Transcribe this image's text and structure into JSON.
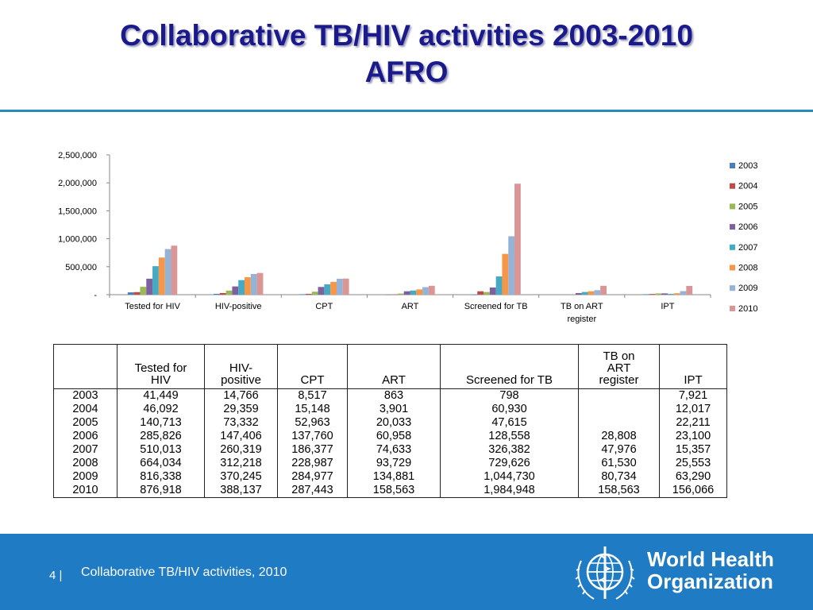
{
  "slide": {
    "title_line1": "Collaborative TB/HIV activities 2003-2010",
    "title_line2": "AFRO"
  },
  "chart_data": {
    "type": "bar",
    "title": "",
    "xlabel": "",
    "ylabel": "",
    "ylim": [
      0,
      2500000
    ],
    "y_ticks": [
      "-",
      "500,000",
      "1,000,000",
      "1,500,000",
      "2,000,000",
      "2,500,000"
    ],
    "grid": false,
    "legend_position": "right",
    "categories": [
      "Tested for HIV",
      "HIV-positive",
      "CPT",
      "ART",
      "Screened for TB",
      "TB on ART register",
      "IPT"
    ],
    "category_lines": [
      [
        "Tested for HIV"
      ],
      [
        "HIV-positive"
      ],
      [
        "CPT"
      ],
      [
        "ART"
      ],
      [
        "Screened for TB"
      ],
      [
        "TB on ART",
        "register"
      ],
      [
        "IPT"
      ]
    ],
    "series": [
      {
        "name": "2003",
        "color": "#4a7ebb",
        "values": [
          41449,
          14766,
          8517,
          863,
          798,
          null,
          7921
        ]
      },
      {
        "name": "2004",
        "color": "#be4b48",
        "values": [
          46092,
          29359,
          15148,
          3901,
          60930,
          null,
          12017
        ]
      },
      {
        "name": "2005",
        "color": "#98b954",
        "values": [
          140713,
          73332,
          52963,
          20033,
          47615,
          null,
          22211
        ]
      },
      {
        "name": "2006",
        "color": "#7d60a0",
        "values": [
          285826,
          147406,
          137760,
          60958,
          128558,
          28808,
          23100
        ]
      },
      {
        "name": "2007",
        "color": "#46aac5",
        "values": [
          510013,
          260319,
          186377,
          74633,
          326382,
          47976,
          15357
        ]
      },
      {
        "name": "2008",
        "color": "#f79646",
        "values": [
          664034,
          312218,
          228987,
          93729,
          729626,
          61530,
          25553
        ]
      },
      {
        "name": "2009",
        "color": "#95b3d7",
        "values": [
          816338,
          370245,
          284977,
          134881,
          1044730,
          80734,
          63290
        ]
      },
      {
        "name": "2010",
        "color": "#d99694",
        "values": [
          876918,
          388137,
          287443,
          158563,
          1984948,
          158563,
          156066
        ]
      }
    ]
  },
  "table": {
    "headers": [
      [
        "",
        ""
      ],
      [
        "Tested for",
        "HIV"
      ],
      [
        "HIV-",
        "positive"
      ],
      [
        "",
        "CPT"
      ],
      [
        "",
        "ART"
      ],
      [
        "",
        "Screened for TB"
      ],
      [
        "TB on",
        "ART",
        "register"
      ],
      [
        "",
        "IPT"
      ]
    ],
    "rows": [
      [
        "2003",
        "41,449",
        "14,766",
        "8,517",
        "863",
        "798",
        "",
        "7,921"
      ],
      [
        "2004",
        "46,092",
        "29,359",
        "15,148",
        "3,901",
        "60,930",
        "",
        "12,017"
      ],
      [
        "2005",
        "140,713",
        "73,332",
        "52,963",
        "20,033",
        "47,615",
        "",
        "22,211"
      ],
      [
        "2006",
        "285,826",
        "147,406",
        "137,760",
        "60,958",
        "128,558",
        "28,808",
        "23,100"
      ],
      [
        "2007",
        "510,013",
        "260,319",
        "186,377",
        "74,633",
        "326,382",
        "47,976",
        "15,357"
      ],
      [
        "2008",
        "664,034",
        "312,218",
        "228,987",
        "93,729",
        "729,626",
        "61,530",
        "25,553"
      ],
      [
        "2009",
        "816,338",
        "370,245",
        "284,977",
        "134,881",
        "1,044,730",
        "80,734",
        "63,290"
      ],
      [
        "2010",
        "876,918",
        "388,137",
        "287,443",
        "158,563",
        "1,984,948",
        "158,563",
        "156,066"
      ]
    ]
  },
  "footer": {
    "slide_number": "4 |",
    "text": "Collaborative TB/HIV activities, 2010",
    "org_line1": "World Health",
    "org_line2": "Organization",
    "emblem_icon": "who-emblem-icon",
    "background_color": "#1e7bc4"
  }
}
